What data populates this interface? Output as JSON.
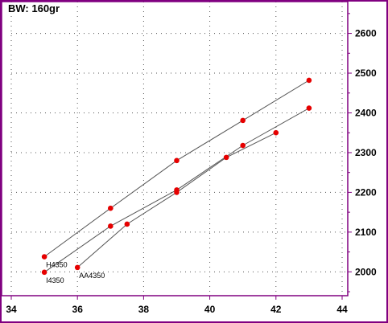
{
  "chart_data": {
    "type": "scatter",
    "title": "BW:  160gr",
    "xlabel": "",
    "ylabel": "",
    "xlim": [
      34,
      44
    ],
    "ylim": [
      1940,
      2680
    ],
    "x_ticks": [
      34,
      36,
      38,
      40,
      42,
      44
    ],
    "y_ticks": [
      2000,
      2100,
      2200,
      2300,
      2400,
      2500,
      2600
    ],
    "y_axis_side": "right",
    "grid": true,
    "legend": "none",
    "colors": {
      "frame": "#800080",
      "point": "#e60000",
      "line": "#555555",
      "grid": "#555555"
    },
    "series": [
      {
        "name": "H4350",
        "x": [
          35,
          37,
          39,
          41,
          43
        ],
        "y": [
          2038,
          2160,
          2280,
          2381,
          2482
        ]
      },
      {
        "name": "I4350",
        "x": [
          35,
          37,
          39,
          41,
          43
        ],
        "y": [
          1999,
          2115,
          2206,
          2318,
          2412
        ]
      },
      {
        "name": "AA4350",
        "x": [
          36,
          37.5,
          39,
          40.5,
          42
        ],
        "y": [
          2011,
          2120,
          2200,
          2288,
          2350
        ]
      }
    ]
  }
}
